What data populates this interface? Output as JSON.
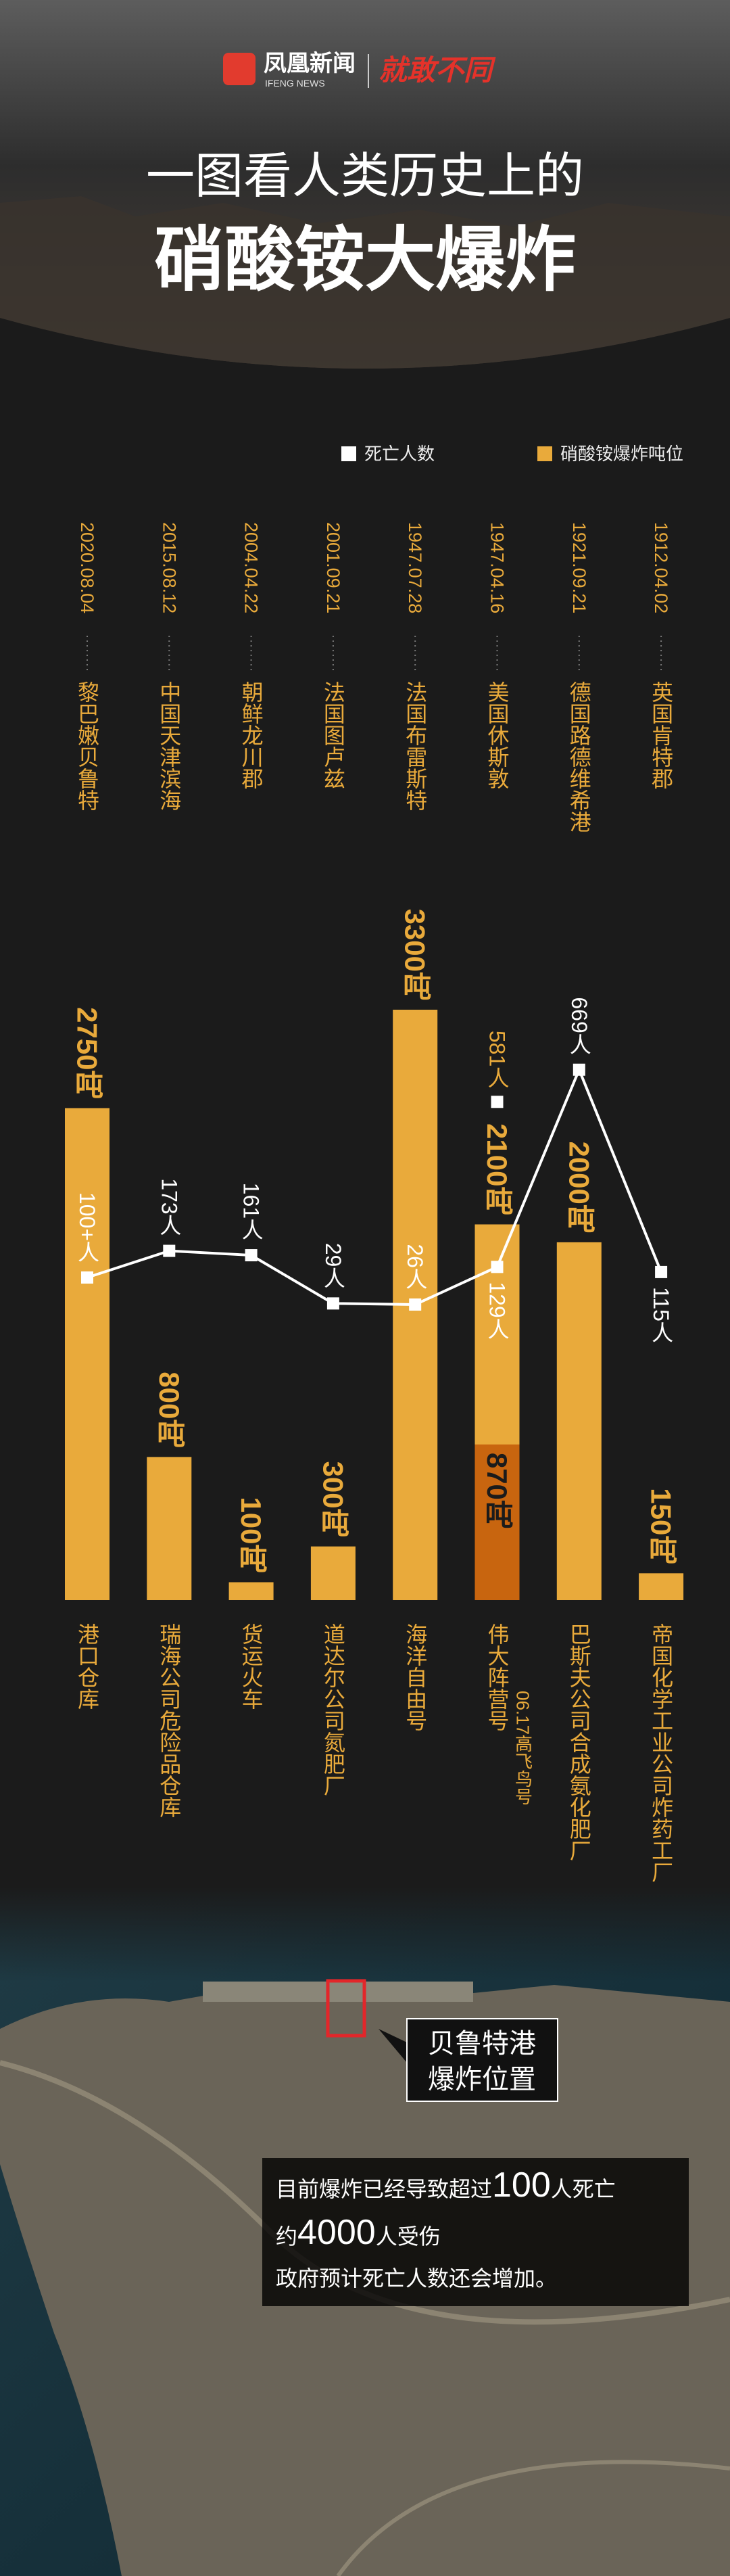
{
  "header": {
    "brand": "凤凰新闻",
    "brand_en": "IFENG NEWS",
    "column": "就敢不同",
    "title_line1": "一图看人类历史上的",
    "title_line2": "硝酸铵大爆炸"
  },
  "chart_data": {
    "type": "bar",
    "categories": [
      "2020.08.04",
      "2015.08.12",
      "2004.04.22",
      "2001.09.21",
      "1947.07.28",
      "1947.04.16",
      "1921.09.21",
      "1912.04.02"
    ],
    "locations": [
      "黎巴嫩贝鲁特",
      "中国天津滨海",
      "朝鲜龙川郡",
      "法国图卢兹",
      "法国布雷斯特",
      "美国休斯敦",
      "德国路德维希港",
      "英国肯特郡"
    ],
    "sites": [
      "港口仓库",
      "瑞海公司危险品仓库",
      "货运火车",
      "道达尔公司氮肥厂",
      "海洋自由号",
      "伟大阵营号",
      "巴斯夫公司合成氨化肥厂",
      "帝国化学工业公司炸药工厂"
    ],
    "site_notes": [
      null,
      null,
      null,
      null,
      null,
      "06.17高飞鸟号",
      null,
      null
    ],
    "ylim": [
      0,
      3300
    ],
    "y2lim": [
      0,
      700
    ],
    "legend": "top-right",
    "series": [
      {
        "name": "硝酸铵爆炸吨位",
        "color": "#e9aa3b",
        "values": [
          2750,
          800,
          100,
          300,
          3300,
          2100,
          2000,
          150
        ],
        "value_labels": [
          "2750吨",
          "800吨",
          "100吨",
          "300吨",
          "3300吨",
          "2100吨",
          "2000吨",
          "150吨"
        ]
      },
      {
        "color": "#c8650f",
        "values": [
          null,
          null,
          null,
          null,
          null,
          870,
          null,
          null
        ],
        "value_labels": [
          null,
          null,
          null,
          null,
          null,
          "870吨",
          null,
          null
        ]
      },
      {
        "name": "死亡人数",
        "type": "line",
        "axis": "y2",
        "color": "#ffffff",
        "values": [
          100,
          173,
          161,
          29,
          26,
          129,
          669,
          115
        ],
        "value_labels": [
          "100+人",
          "173人",
          "161人",
          "29人",
          "26人",
          "129人",
          "669人",
          "115人"
        ]
      },
      {
        "type": "marker",
        "axis": "y2",
        "color": "#ffffff",
        "values": [
          null,
          null,
          null,
          null,
          null,
          581,
          null,
          null
        ],
        "value_labels": [
          null,
          null,
          null,
          null,
          null,
          "581人",
          null,
          null
        ]
      }
    ]
  },
  "map": {
    "marker_line1": "贝鲁特港",
    "marker_line2": "爆炸位置",
    "note1_a": "目前爆炸已经导致超过",
    "note1_b": "100",
    "note1_c": "人死亡",
    "note2_a": "约",
    "note2_b": "4000",
    "note2_c": "人受伤",
    "note3": "政府预计死亡人数还会增加。"
  }
}
